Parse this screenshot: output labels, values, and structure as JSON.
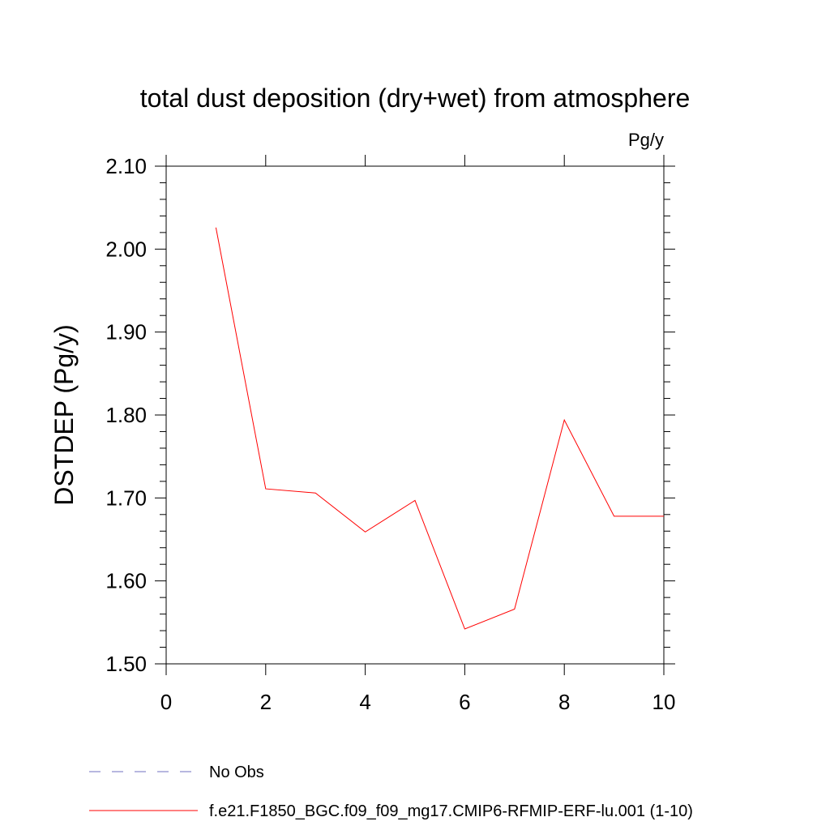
{
  "chart_data": {
    "type": "line",
    "title": "total dust deposition (dry+wet) from atmosphere",
    "units": "Pg/y",
    "ylabel": "DSTDEP  (Pg/y)",
    "xlabel": "",
    "xlim": [
      0,
      10
    ],
    "ylim": [
      1.5,
      2.1
    ],
    "xticks": [
      0,
      2,
      4,
      6,
      8,
      10
    ],
    "xtick_labels": [
      "0",
      "2",
      "4",
      "6",
      "8",
      "10"
    ],
    "yticks": [
      1.5,
      1.6,
      1.7,
      1.8,
      1.9,
      2.0,
      2.1
    ],
    "ytick_labels": [
      "1.50",
      "1.60",
      "1.70",
      "1.80",
      "1.90",
      "2.00",
      "2.10"
    ],
    "grid": false,
    "legend_position": "bottom",
    "series": [
      {
        "name": "f.e21.F1850_BGC.f09_f09_mg17.CMIP6-RFMIP-ERF-lu.001 (1-10)",
        "color": "#ff0000",
        "style": "solid",
        "x": [
          1,
          2,
          3,
          4,
          5,
          6,
          7,
          8,
          9,
          10
        ],
        "values": [
          2.026,
          1.711,
          1.706,
          1.659,
          1.697,
          1.542,
          1.566,
          1.794,
          1.678,
          1.678
        ]
      }
    ],
    "legend": [
      {
        "label": "No Obs",
        "color": "#6f6fc0",
        "style": "dashed"
      },
      {
        "label": "f.e21.F1850_BGC.f09_f09_mg17.CMIP6-RFMIP-ERF-lu.001 (1-10)",
        "color": "#ff0000",
        "style": "solid"
      }
    ]
  }
}
